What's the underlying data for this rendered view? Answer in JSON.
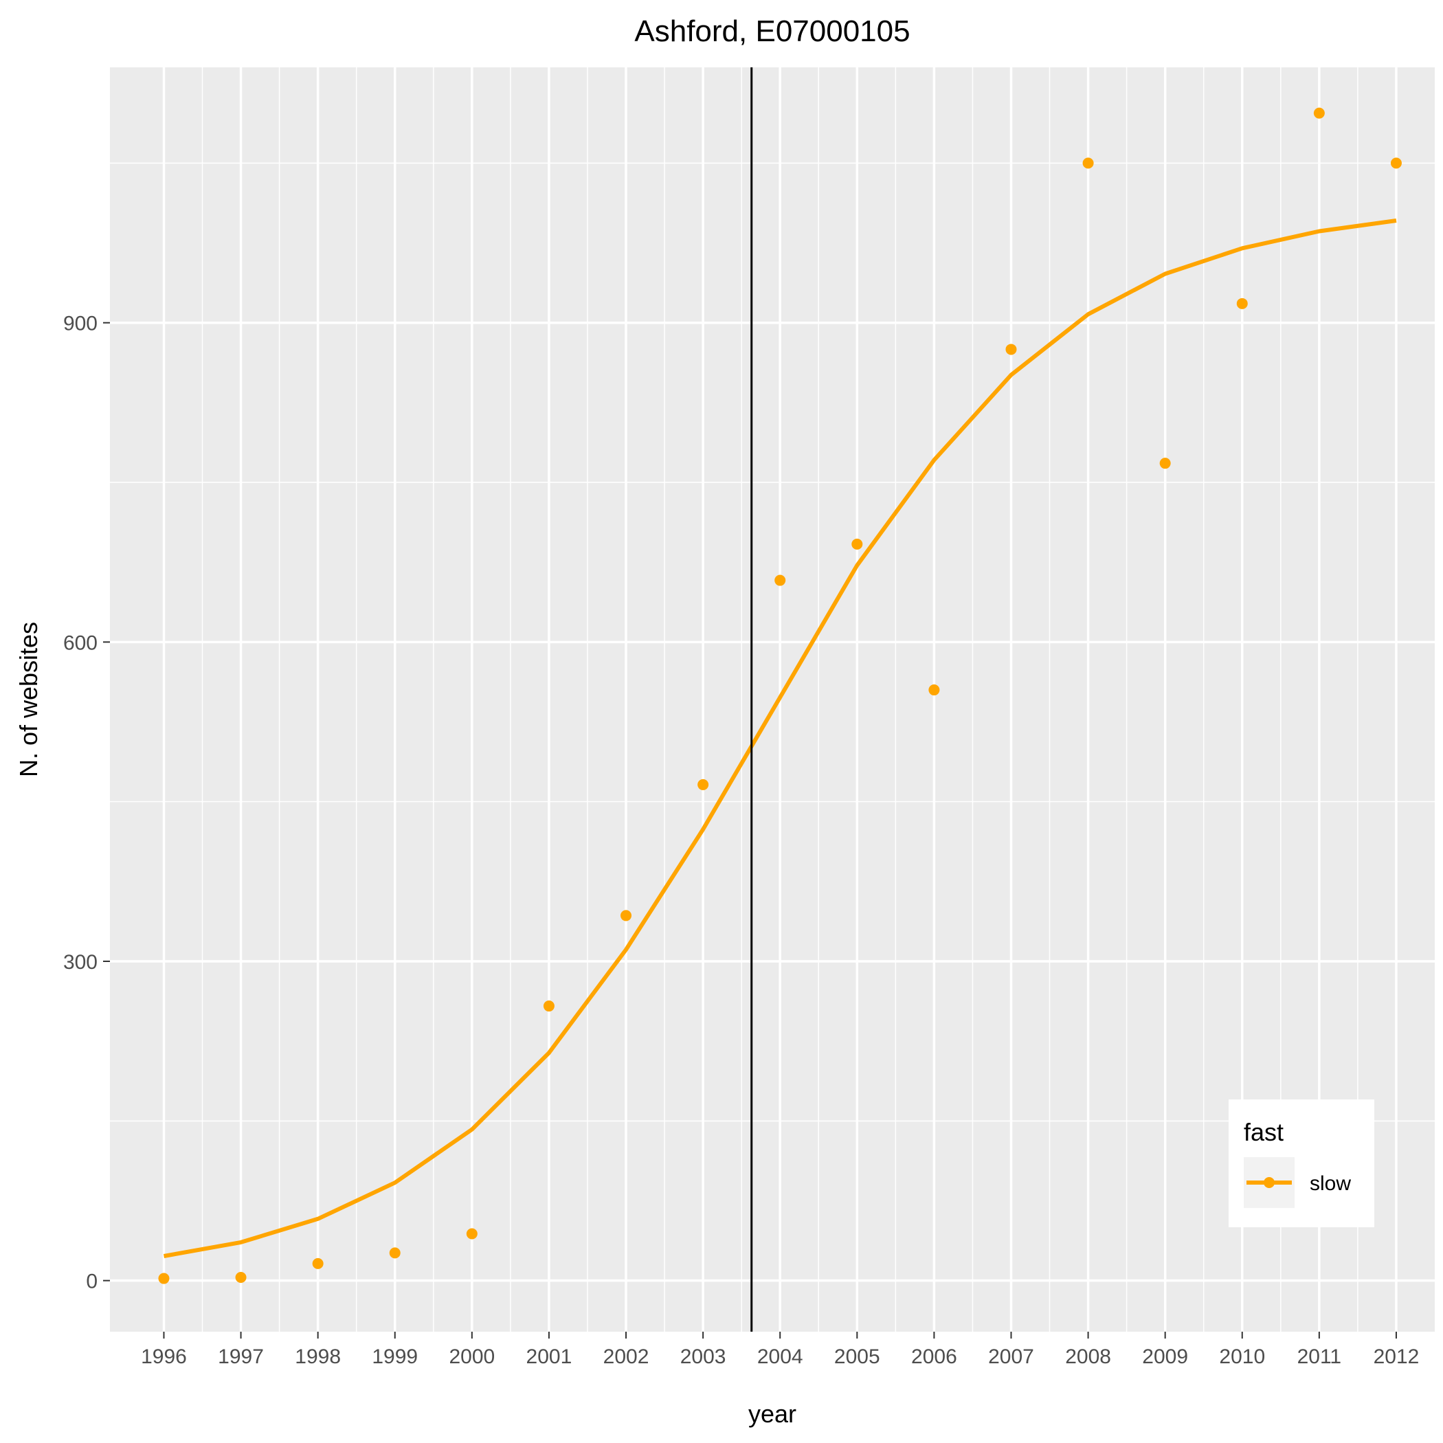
{
  "chart_data": {
    "type": "line",
    "title": "Ashford, E07000105",
    "xlabel": "year",
    "ylabel": "N. of websites",
    "x": [
      1996,
      1997,
      1998,
      1999,
      2000,
      2001,
      2002,
      2003,
      2004,
      2005,
      2006,
      2007,
      2008,
      2009,
      2010,
      2011,
      2012
    ],
    "x_tick_labels": [
      "1996",
      "1997",
      "1998",
      "1999",
      "2000",
      "2001",
      "2002",
      "2003",
      "2004",
      "2005",
      "2006",
      "2007",
      "2008",
      "2009",
      "2010",
      "2011",
      "2012"
    ],
    "y_ticks": [
      0,
      300,
      600,
      900
    ],
    "y_tick_labels": [
      "0",
      "300",
      "600",
      "900"
    ],
    "xlim": [
      1995.3,
      2012.5
    ],
    "ylim": [
      -48,
      1140
    ],
    "series": [
      {
        "name": "slow",
        "color": "#FFA500",
        "points": [
          2,
          3,
          16,
          26,
          44,
          258,
          343,
          466,
          658,
          692,
          555,
          875,
          1050,
          768,
          918,
          1097,
          1050
        ],
        "smooth": [
          23,
          36,
          58,
          92,
          142,
          214,
          311,
          424,
          548,
          672,
          771,
          851,
          908,
          946,
          970,
          986,
          996
        ]
      }
    ],
    "vline": {
      "x": 2003.63,
      "color": "#000000"
    },
    "legend": {
      "title": "fast",
      "entries": [
        "slow"
      ],
      "position": "bottom-right"
    },
    "grid": true,
    "panel_background": "#EBEBEB",
    "grid_color": "#FFFFFF"
  }
}
